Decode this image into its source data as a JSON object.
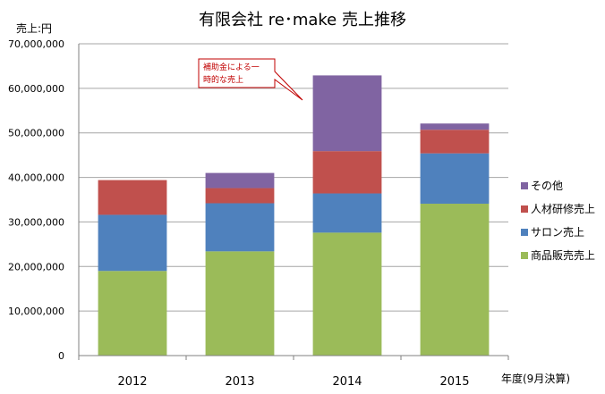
{
  "chart_data": {
    "type": "bar",
    "stacked": true,
    "title": "有限会社 re･make 売上推移",
    "ylabel": "売上:円",
    "xlabel": "年度(9月決算)",
    "ylim": [
      0,
      70000000
    ],
    "yticks": [
      0,
      10000000,
      20000000,
      30000000,
      40000000,
      50000000,
      60000000,
      70000000
    ],
    "ytick_labels": [
      "0",
      "10,000,000",
      "20,000,000",
      "30,000,000",
      "40,000,000",
      "50,000,000",
      "60,000,000",
      "70,000,000"
    ],
    "grid": true,
    "legend_position": "right",
    "categories": [
      "2012",
      "2013",
      "2014",
      "2015"
    ],
    "series": [
      {
        "name": "商品販売売上",
        "color": "#9bbb59",
        "values": [
          19000000,
          23400000,
          27600000,
          34100000
        ]
      },
      {
        "name": "サロン売上",
        "color": "#4f81bd",
        "values": [
          12600000,
          10800000,
          8800000,
          11300000
        ]
      },
      {
        "name": "人材研修売上",
        "color": "#c0504d",
        "values": [
          7800000,
          3400000,
          9500000,
          5300000
        ]
      },
      {
        "name": "その他",
        "color": "#8064a2",
        "values": [
          0,
          3400000,
          17000000,
          1400000
        ]
      }
    ],
    "annotation": {
      "lines": [
        "補助金による一",
        "時的な売上"
      ],
      "target_category": "2014"
    }
  }
}
